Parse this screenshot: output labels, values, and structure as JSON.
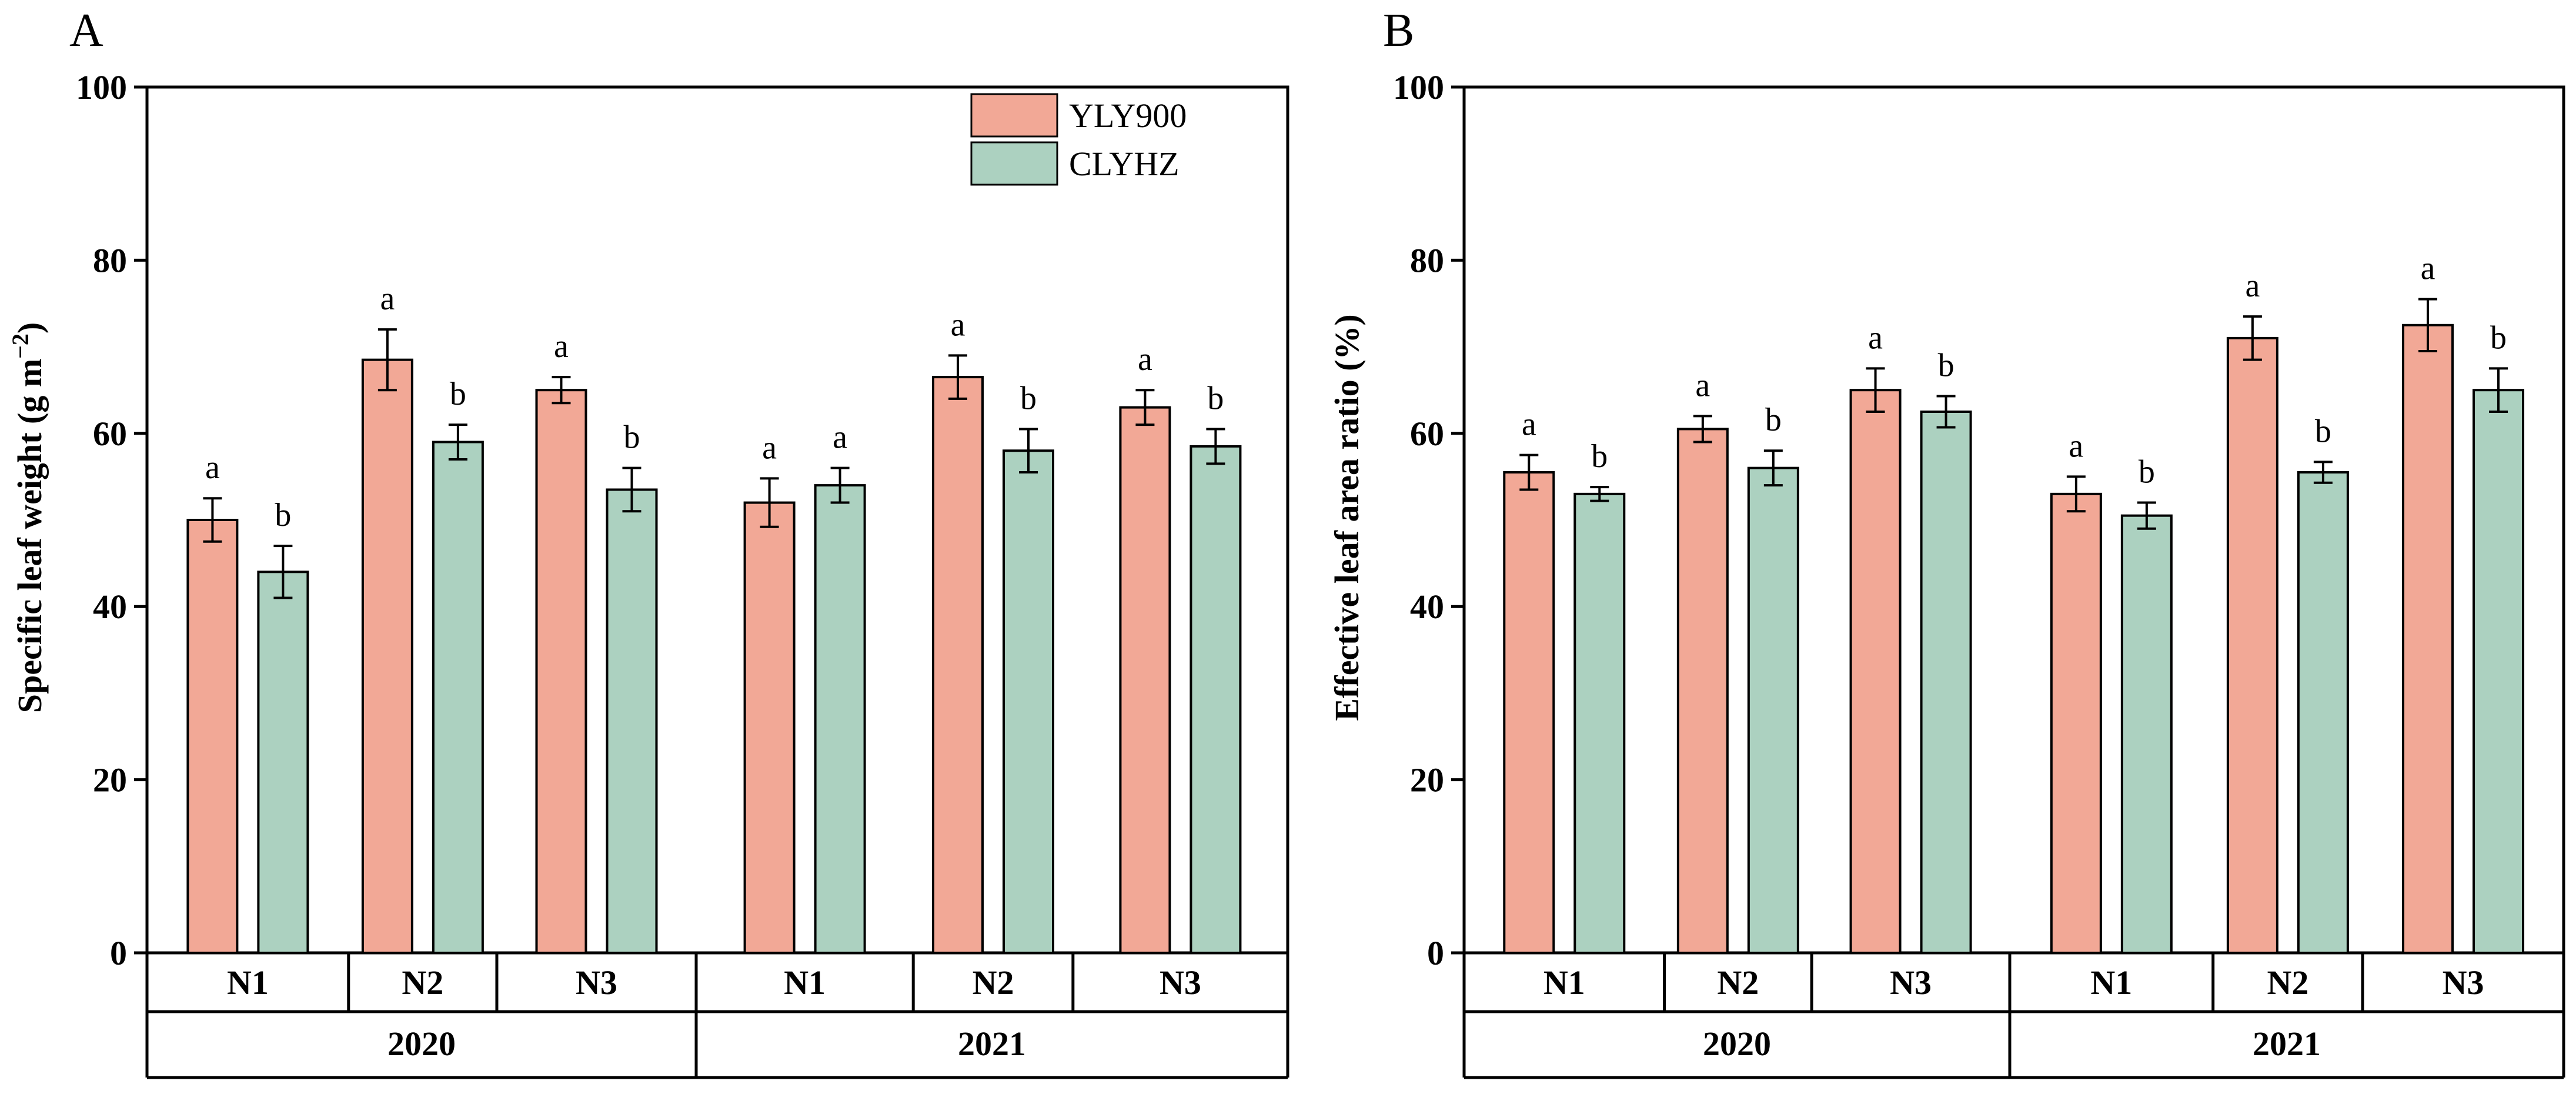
{
  "colors": {
    "yly900": "#f2a896",
    "clyhz": "#acd1c0",
    "edge": "#000000"
  },
  "legend": {
    "series": [
      "YLY900",
      "CLYHZ"
    ]
  },
  "chart_data": [
    {
      "panel": "A",
      "type": "bar",
      "ylabel": "Specific leaf weight (g m−2)",
      "ylim": [
        0,
        100
      ],
      "yticks": [
        0,
        20,
        40,
        60,
        80,
        100
      ],
      "years": [
        "2020",
        "2021"
      ],
      "nitrogen": [
        "N1",
        "N2",
        "N3"
      ],
      "categories": [
        "2020 N1",
        "2020 N2",
        "2020 N3",
        "2021 N1",
        "2021 N2",
        "2021 N3"
      ],
      "series": [
        {
          "name": "YLY900",
          "values": [
            50,
            68.5,
            65,
            52,
            66.5,
            63
          ],
          "errors": [
            2.5,
            3.5,
            1.5,
            2.8,
            2.5,
            2
          ],
          "letters": [
            "a",
            "a",
            "a",
            "a",
            "a",
            "a"
          ]
        },
        {
          "name": "CLYHZ",
          "values": [
            44,
            59,
            53.5,
            54,
            58,
            58.5
          ],
          "errors": [
            3,
            2,
            2.5,
            2,
            2.5,
            2
          ],
          "letters": [
            "b",
            "b",
            "b",
            "a",
            "b",
            "b"
          ]
        }
      ],
      "legend_position": "top-right"
    },
    {
      "panel": "B",
      "type": "bar",
      "ylabel": "Effective leaf area ratio (%)",
      "ylim": [
        0,
        100
      ],
      "yticks": [
        0,
        20,
        40,
        60,
        80,
        100
      ],
      "years": [
        "2020",
        "2021"
      ],
      "nitrogen": [
        "N1",
        "N2",
        "N3"
      ],
      "categories": [
        "2020 N1",
        "2020 N2",
        "2020 N3",
        "2021 N1",
        "2021 N2",
        "2021 N3"
      ],
      "series": [
        {
          "name": "YLY900",
          "values": [
            55.5,
            60.5,
            65,
            53,
            71,
            72.5
          ],
          "errors": [
            2,
            1.5,
            2.5,
            2,
            2.5,
            3
          ],
          "letters": [
            "a",
            "a",
            "a",
            "a",
            "a",
            "a"
          ]
        },
        {
          "name": "CLYHZ",
          "values": [
            53,
            56,
            62.5,
            50.5,
            55.5,
            65
          ],
          "errors": [
            0.8,
            2,
            1.8,
            1.5,
            1.2,
            2.5
          ],
          "letters": [
            "b",
            "b",
            "b",
            "b",
            "b",
            "b"
          ]
        }
      ]
    }
  ]
}
